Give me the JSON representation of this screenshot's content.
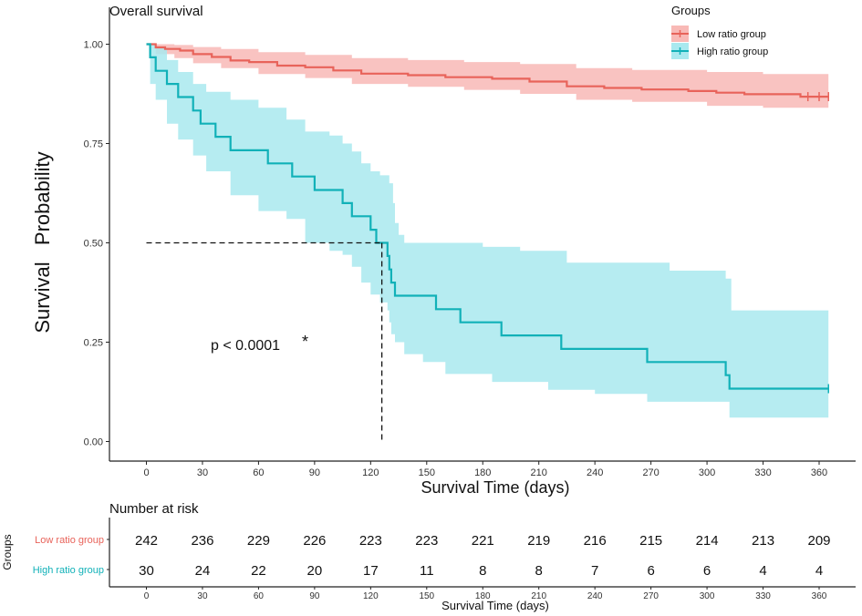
{
  "chart_data": {
    "type": "line",
    "subtype": "kaplan-meier",
    "title": "Overall survival",
    "xlabel": "Survival Time (days)",
    "ylabel": "Survival   Probability",
    "xlim": [
      -10,
      372
    ],
    "ylim": [
      -0.05,
      1.02
    ],
    "x_ticks": [
      0,
      30,
      60,
      90,
      120,
      150,
      180,
      210,
      240,
      270,
      300,
      330,
      360
    ],
    "y_ticks": [
      0.0,
      0.25,
      0.5,
      0.75,
      1.0
    ],
    "y_tick_labels": [
      "0.00",
      "0.25",
      "0.50",
      "0.75",
      "1.00"
    ],
    "grid": false,
    "legend": {
      "title": "Groups",
      "position": "top-right",
      "entries": [
        "Low ratio group",
        "High ratio group"
      ]
    },
    "annotation": {
      "text": "p < 0.0001",
      "star": "*"
    },
    "median_line": {
      "x": 126,
      "y": 0.5,
      "style": "dashed"
    },
    "series": [
      {
        "name": "Low ratio group",
        "color": "#e8635a",
        "band_color": "#f8b9b6",
        "steps": [
          [
            0,
            1.0
          ],
          [
            5,
            0.992
          ],
          [
            10,
            0.988
          ],
          [
            18,
            0.984
          ],
          [
            25,
            0.975
          ],
          [
            35,
            0.968
          ],
          [
            45,
            0.959
          ],
          [
            55,
            0.955
          ],
          [
            70,
            0.946
          ],
          [
            85,
            0.942
          ],
          [
            100,
            0.934
          ],
          [
            115,
            0.926
          ],
          [
            140,
            0.922
          ],
          [
            160,
            0.917
          ],
          [
            185,
            0.913
          ],
          [
            205,
            0.906
          ],
          [
            225,
            0.894
          ],
          [
            245,
            0.89
          ],
          [
            265,
            0.886
          ],
          [
            290,
            0.882
          ],
          [
            305,
            0.878
          ],
          [
            320,
            0.874
          ],
          [
            350,
            0.868
          ],
          [
            365,
            0.868
          ]
        ],
        "upper": [
          [
            0,
            1.0
          ],
          [
            5,
            1.0
          ],
          [
            15,
            0.998
          ],
          [
            25,
            0.993
          ],
          [
            40,
            0.988
          ],
          [
            60,
            0.98
          ],
          [
            85,
            0.973
          ],
          [
            110,
            0.965
          ],
          [
            140,
            0.96
          ],
          [
            170,
            0.955
          ],
          [
            200,
            0.95
          ],
          [
            230,
            0.94
          ],
          [
            260,
            0.935
          ],
          [
            300,
            0.93
          ],
          [
            330,
            0.925
          ],
          [
            365,
            0.91
          ]
        ],
        "lower": [
          [
            0,
            1.0
          ],
          [
            5,
            0.975
          ],
          [
            15,
            0.965
          ],
          [
            25,
            0.952
          ],
          [
            40,
            0.94
          ],
          [
            60,
            0.925
          ],
          [
            85,
            0.915
          ],
          [
            110,
            0.9
          ],
          [
            140,
            0.893
          ],
          [
            170,
            0.885
          ],
          [
            200,
            0.875
          ],
          [
            230,
            0.86
          ],
          [
            260,
            0.855
          ],
          [
            300,
            0.845
          ],
          [
            330,
            0.84
          ],
          [
            365,
            0.825
          ]
        ],
        "censor_x": [
          354,
          360,
          365
        ]
      },
      {
        "name": "High ratio group",
        "color": "#11b1b8",
        "band_color": "#a9e9ef",
        "steps": [
          [
            0,
            1.0
          ],
          [
            2,
            0.967
          ],
          [
            5,
            0.933
          ],
          [
            11,
            0.9
          ],
          [
            17,
            0.867
          ],
          [
            25,
            0.833
          ],
          [
            29,
            0.8
          ],
          [
            37,
            0.767
          ],
          [
            45,
            0.733
          ],
          [
            65,
            0.7
          ],
          [
            78,
            0.667
          ],
          [
            90,
            0.633
          ],
          [
            105,
            0.6
          ],
          [
            110,
            0.567
          ],
          [
            120,
            0.533
          ],
          [
            123,
            0.5
          ],
          [
            129,
            0.467
          ],
          [
            130,
            0.433
          ],
          [
            131,
            0.4
          ],
          [
            133,
            0.367
          ],
          [
            138,
            0.367
          ],
          [
            155,
            0.333
          ],
          [
            168,
            0.3
          ],
          [
            190,
            0.267
          ],
          [
            222,
            0.233
          ],
          [
            268,
            0.2
          ],
          [
            298,
            0.2
          ],
          [
            310,
            0.167
          ],
          [
            312,
            0.133
          ],
          [
            365,
            0.133
          ]
        ],
        "upper": [
          [
            0,
            1.0
          ],
          [
            2,
            1.0
          ],
          [
            5,
            0.99
          ],
          [
            11,
            0.96
          ],
          [
            17,
            0.93
          ],
          [
            25,
            0.9
          ],
          [
            32,
            0.88
          ],
          [
            45,
            0.86
          ],
          [
            60,
            0.84
          ],
          [
            75,
            0.81
          ],
          [
            85,
            0.78
          ],
          [
            98,
            0.77
          ],
          [
            105,
            0.75
          ],
          [
            110,
            0.73
          ],
          [
            115,
            0.7
          ],
          [
            120,
            0.68
          ],
          [
            125,
            0.67
          ],
          [
            130,
            0.65
          ],
          [
            132,
            0.6
          ],
          [
            133,
            0.55
          ],
          [
            135,
            0.52
          ],
          [
            138,
            0.5
          ],
          [
            155,
            0.5
          ],
          [
            170,
            0.5
          ],
          [
            180,
            0.49
          ],
          [
            200,
            0.48
          ],
          [
            225,
            0.45
          ],
          [
            260,
            0.45
          ],
          [
            280,
            0.43
          ],
          [
            310,
            0.41
          ],
          [
            313,
            0.33
          ],
          [
            365,
            0.33
          ]
        ],
        "lower": [
          [
            0,
            1.0
          ],
          [
            2,
            0.9
          ],
          [
            5,
            0.86
          ],
          [
            11,
            0.8
          ],
          [
            17,
            0.76
          ],
          [
            25,
            0.72
          ],
          [
            32,
            0.68
          ],
          [
            45,
            0.62
          ],
          [
            60,
            0.58
          ],
          [
            75,
            0.56
          ],
          [
            85,
            0.5
          ],
          [
            98,
            0.48
          ],
          [
            105,
            0.47
          ],
          [
            110,
            0.44
          ],
          [
            115,
            0.4
          ],
          [
            120,
            0.37
          ],
          [
            125,
            0.35
          ],
          [
            129,
            0.33
          ],
          [
            130,
            0.3
          ],
          [
            131,
            0.27
          ],
          [
            133,
            0.25
          ],
          [
            138,
            0.22
          ],
          [
            148,
            0.2
          ],
          [
            160,
            0.17
          ],
          [
            185,
            0.15
          ],
          [
            215,
            0.13
          ],
          [
            240,
            0.12
          ],
          [
            268,
            0.1
          ],
          [
            298,
            0.1
          ],
          [
            312,
            0.06
          ],
          [
            365,
            0.055
          ]
        ],
        "censor_x": [
          365
        ]
      }
    ]
  },
  "risk_table": {
    "title": "Number at risk",
    "y_label": "Groups",
    "x_label": "Survival Time (days)",
    "x_ticks": [
      0,
      30,
      60,
      90,
      120,
      150,
      180,
      210,
      240,
      270,
      300,
      330,
      360
    ],
    "rows": [
      {
        "name": "Low ratio group",
        "color": "#e8635a",
        "values": [
          242,
          236,
          229,
          226,
          223,
          223,
          221,
          219,
          216,
          215,
          214,
          213,
          209
        ]
      },
      {
        "name": "High ratio group",
        "color": "#11b1b8",
        "values": [
          30,
          24,
          22,
          20,
          17,
          11,
          8,
          8,
          7,
          6,
          6,
          4,
          4
        ]
      }
    ]
  }
}
